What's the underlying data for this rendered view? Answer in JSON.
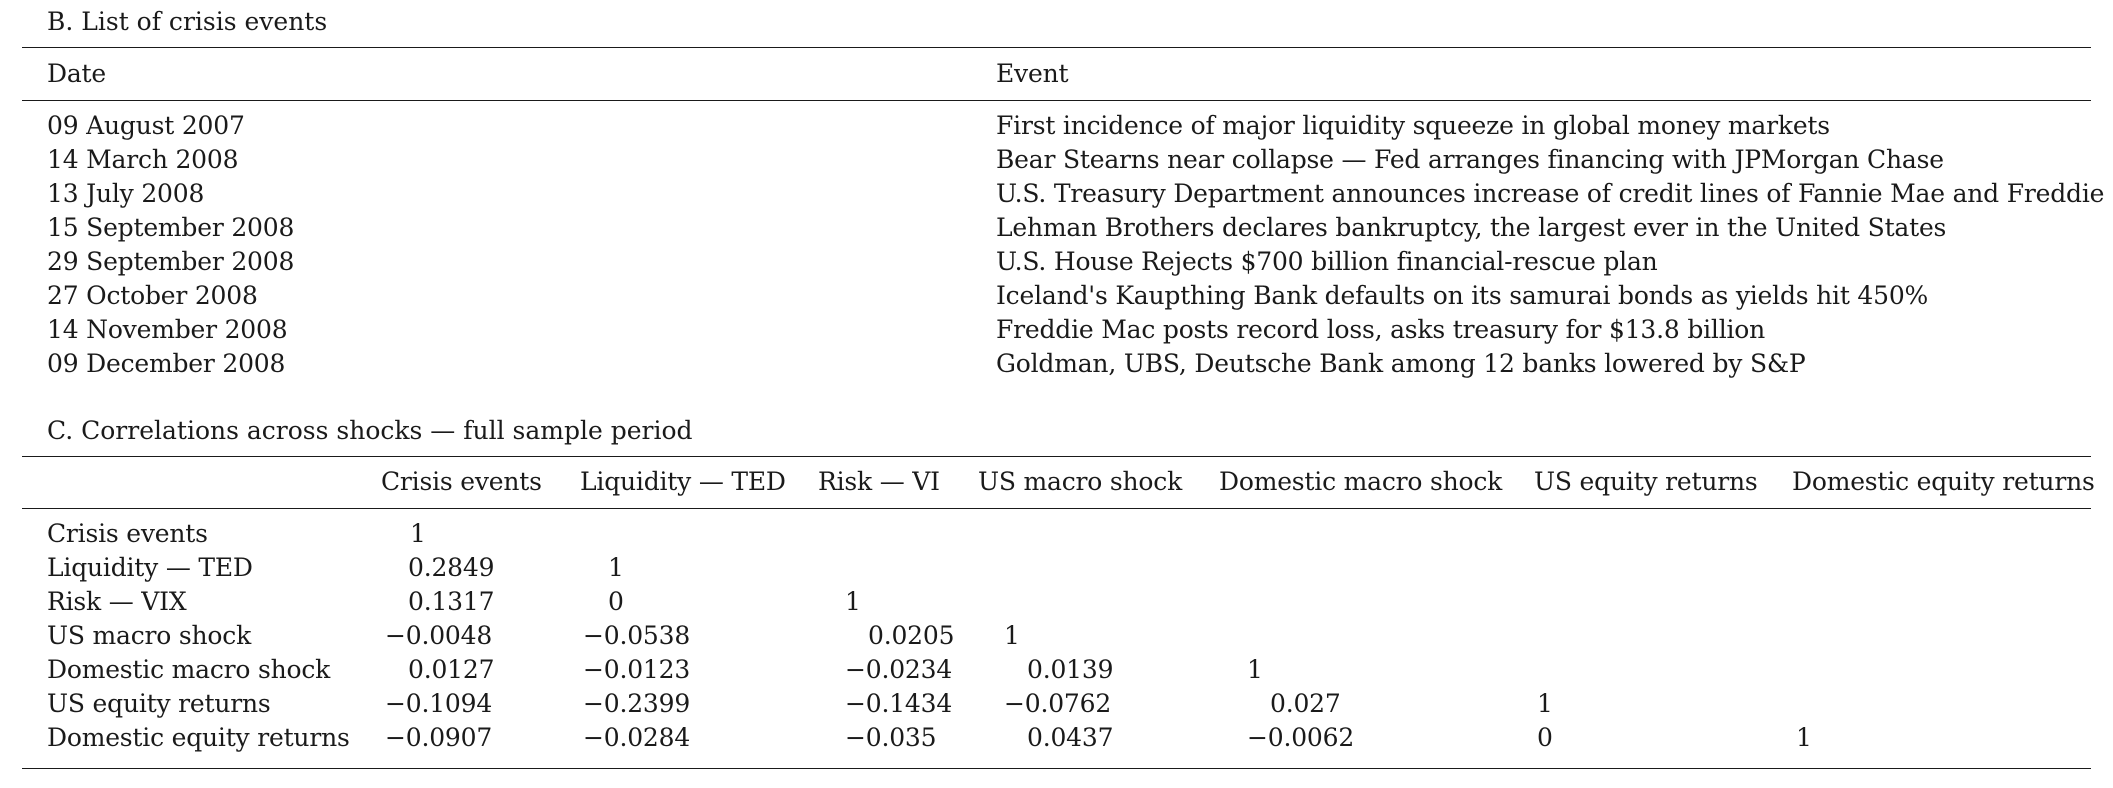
{
  "section_b": {
    "title": "B. List of crisis events",
    "header": {
      "date": "Date",
      "event": "Event"
    },
    "rows": [
      {
        "date": "09 August 2007",
        "event": "First incidence of major liquidity squeeze in global money markets"
      },
      {
        "date": "14 March 2008",
        "event": "Bear Stearns near collapse — Fed arranges financing with JPMorgan Chase"
      },
      {
        "date": "13 July 2008",
        "event": "U.S. Treasury Department announces increase of credit lines of Fannie Mae and Freddie Mac"
      },
      {
        "date": "15 September 2008",
        "event": "Lehman Brothers declares bankruptcy, the largest ever in the United States"
      },
      {
        "date": "29 September 2008",
        "event": "U.S. House Rejects $700 billion financial-rescue plan"
      },
      {
        "date": "27 October 2008",
        "event": "Iceland's Kaupthing Bank defaults on its samurai bonds as yields hit 450%"
      },
      {
        "date": "14 November 2008",
        "event": "Freddie Mac posts record loss, asks treasury for $13.8 billion"
      },
      {
        "date": "09 December 2008",
        "event": "Goldman, UBS, Deutsche Bank among 12 banks lowered by S&P"
      }
    ]
  },
  "section_c": {
    "title": "C. Correlations across shocks — full sample period",
    "columns": [
      "Crisis events",
      "Liquidity — TED",
      "Risk — VI",
      "US macro shock",
      "Domestic macro shock",
      "US equity returns",
      "Domestic equity returns"
    ],
    "rows": [
      {
        "label": "Crisis events",
        "values": [
          "1"
        ]
      },
      {
        "label": "Liquidity — TED",
        "values": [
          "0.2849",
          "1"
        ]
      },
      {
        "label": "Risk — VIX",
        "values": [
          "0.1317",
          "0",
          "1"
        ]
      },
      {
        "label": "US macro shock",
        "values": [
          "−0.0048",
          "−0.0538",
          "0.0205",
          "1"
        ]
      },
      {
        "label": "Domestic macro shock",
        "values": [
          "0.0127",
          "−0.0123",
          "−0.0234",
          "0.0139",
          "1"
        ]
      },
      {
        "label": "US equity returns",
        "values": [
          "−0.1094",
          "−0.2399",
          "−0.1434",
          "−0.0762",
          "0.027",
          "1"
        ]
      },
      {
        "label": "Domestic equity returns",
        "values": [
          "−0.0907",
          "−0.0284",
          "−0.035",
          "0.0437",
          "−0.0062",
          "0",
          "1"
        ]
      }
    ]
  }
}
